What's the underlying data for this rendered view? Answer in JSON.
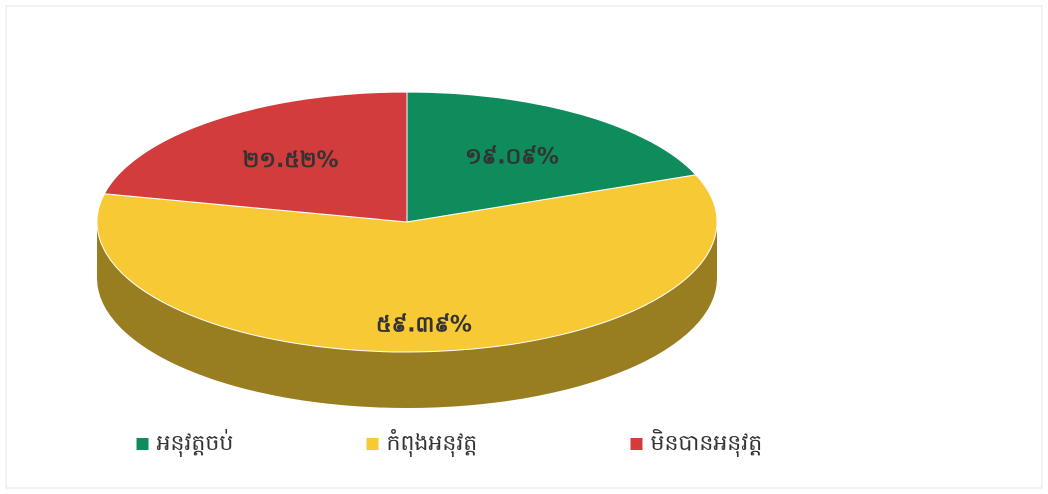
{
  "chart_data": {
    "type": "pie3d",
    "categories": [
      "អនុវត្តចប់",
      "កំពុងអនុវត្ត",
      "មិនបានអនុវត្ត"
    ],
    "values": [
      19.09,
      59.39,
      21.52
    ],
    "value_labels": [
      "១៩.០៩%",
      "៥៩.៣៩%",
      "២១.៥២%"
    ],
    "colors": [
      "#0f8c5c",
      "#f6c935",
      "#d23c3c"
    ],
    "legend": "bottom"
  }
}
